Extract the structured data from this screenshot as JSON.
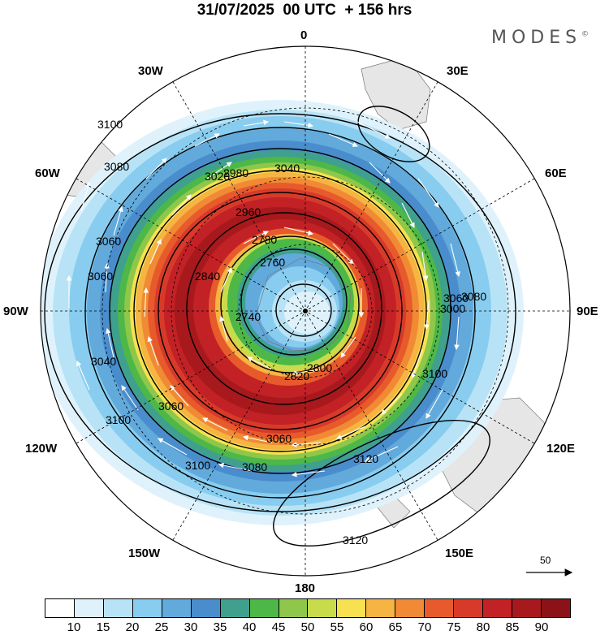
{
  "header": {
    "title": "31/07/2025  00 UTC  + 156 hrs",
    "brand": "MODES",
    "brand_mark": "©"
  },
  "longitude_labels": {
    "lon_0": "0",
    "lon_30e": "30E",
    "lon_60e": "60E",
    "lon_90e": "90E",
    "lon_120e": "120E",
    "lon_150e": "150E",
    "lon_180": "180",
    "lon_150w": "150W",
    "lon_120w": "120W",
    "lon_90w": "90W",
    "lon_60w": "60W",
    "lon_30w": "30W"
  },
  "contour_labels": [
    "3100",
    "3080",
    "3040",
    "3020",
    "2980",
    "2960",
    "2840",
    "2780",
    "2760",
    "2740",
    "2820",
    "2800",
    "3060",
    "3000",
    "3080",
    "3060",
    "3040",
    "3060",
    "3120",
    "3120",
    "3100",
    "3100",
    "3080",
    "3100",
    "3060",
    "3060"
  ],
  "vector_scale": {
    "label": "50"
  },
  "colorbar": {
    "ticks": [
      "10",
      "15",
      "20",
      "25",
      "30",
      "35",
      "40",
      "45",
      "50",
      "55",
      "60",
      "65",
      "70",
      "75",
      "80",
      "85",
      "90"
    ],
    "colors": [
      "#ffffff",
      "#dff2fb",
      "#b8e3f6",
      "#88cdef",
      "#62a9dc",
      "#4a8dcc",
      "#3fa08e",
      "#4db848",
      "#8fc74a",
      "#c8dc4b",
      "#f7e151",
      "#f6b443",
      "#f08a34",
      "#e75a2c",
      "#d83a29",
      "#c22126",
      "#a8191d",
      "#8b1216"
    ]
  }
}
